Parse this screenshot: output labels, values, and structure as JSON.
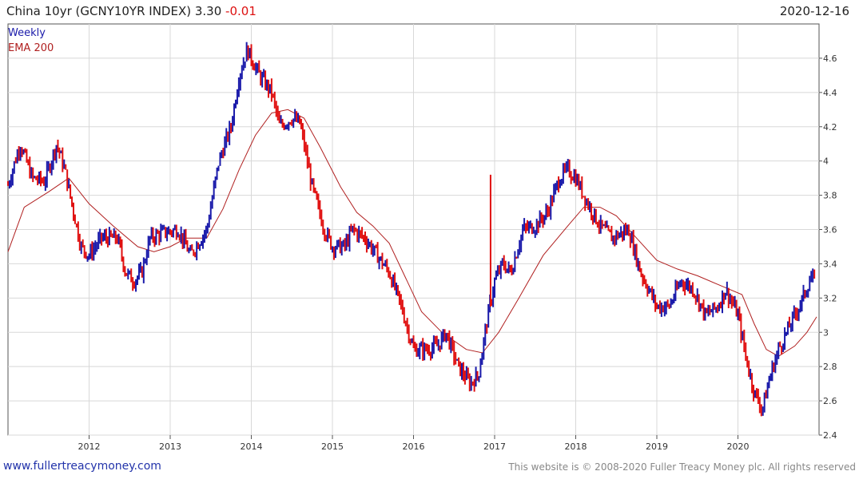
{
  "header": {
    "title_prefix": "China 10yr (GCNY10YR INDEX) 3.30",
    "change": "-0.01",
    "date": "2020-12-16"
  },
  "footer": {
    "site": "www.fullertreacymoney.com",
    "copyright": "This website is © 2008-2020 Fuller Treacy Money plc. All rights reserved"
  },
  "chart_data": {
    "type": "line",
    "legend": [
      "Weekly",
      "EMA 200"
    ],
    "ylim": [
      2.4,
      4.8
    ],
    "xlim": [
      2011.0,
      2021.0
    ],
    "yticks": [
      "2.4",
      "2.6",
      "2.8",
      "3",
      "3.2",
      "3.4",
      "3.6",
      "3.8",
      "4",
      "4.2",
      "4.4",
      "4.6"
    ],
    "xticks": [
      "2012",
      "2013",
      "2014",
      "2015",
      "2016",
      "2017",
      "2018",
      "2019",
      "2020"
    ],
    "colors": {
      "up": "#1a1aaa",
      "down": "#e01010",
      "ema": "#b02020",
      "grid": "#d8d8d8"
    },
    "price": [
      [
        2011.0,
        3.86
      ],
      [
        2011.15,
        4.1
      ],
      [
        2011.3,
        3.9
      ],
      [
        2011.45,
        3.88
      ],
      [
        2011.6,
        4.1
      ],
      [
        2011.7,
        3.95
      ],
      [
        2011.8,
        3.72
      ],
      [
        2011.9,
        3.5
      ],
      [
        2012.0,
        3.45
      ],
      [
        2012.15,
        3.55
      ],
      [
        2012.35,
        3.55
      ],
      [
        2012.45,
        3.35
      ],
      [
        2012.55,
        3.3
      ],
      [
        2012.65,
        3.35
      ],
      [
        2012.75,
        3.55
      ],
      [
        2012.9,
        3.58
      ],
      [
        2013.1,
        3.6
      ],
      [
        2013.25,
        3.45
      ],
      [
        2013.45,
        3.6
      ],
      [
        2013.6,
        4.0
      ],
      [
        2013.75,
        4.2
      ],
      [
        2013.85,
        4.5
      ],
      [
        2013.95,
        4.65
      ],
      [
        2014.1,
        4.5
      ],
      [
        2014.25,
        4.4
      ],
      [
        2014.35,
        4.2
      ],
      [
        2014.5,
        4.25
      ],
      [
        2014.6,
        4.22
      ],
      [
        2014.75,
        3.85
      ],
      [
        2014.9,
        3.6
      ],
      [
        2015.0,
        3.5
      ],
      [
        2015.15,
        3.5
      ],
      [
        2015.25,
        3.6
      ],
      [
        2015.4,
        3.55
      ],
      [
        2015.55,
        3.45
      ],
      [
        2015.7,
        3.35
      ],
      [
        2015.85,
        3.15
      ],
      [
        2016.0,
        2.9
      ],
      [
        2016.15,
        2.9
      ],
      [
        2016.3,
        2.92
      ],
      [
        2016.4,
        3.0
      ],
      [
        2016.55,
        2.8
      ],
      [
        2016.7,
        2.7
      ],
      [
        2016.8,
        2.75
      ],
      [
        2016.9,
        3.05
      ],
      [
        2017.0,
        3.3
      ],
      [
        2017.1,
        3.4
      ],
      [
        2017.2,
        3.35
      ],
      [
        2017.35,
        3.6
      ],
      [
        2017.5,
        3.62
      ],
      [
        2017.65,
        3.7
      ],
      [
        2017.8,
        3.9
      ],
      [
        2017.9,
        3.95
      ],
      [
        2018.0,
        3.9
      ],
      [
        2018.15,
        3.75
      ],
      [
        2018.3,
        3.62
      ],
      [
        2018.45,
        3.55
      ],
      [
        2018.65,
        3.6
      ],
      [
        2018.8,
        3.35
      ],
      [
        2019.0,
        3.15
      ],
      [
        2019.15,
        3.15
      ],
      [
        2019.3,
        3.3
      ],
      [
        2019.45,
        3.25
      ],
      [
        2019.6,
        3.1
      ],
      [
        2019.75,
        3.15
      ],
      [
        2019.85,
        3.25
      ],
      [
        2020.0,
        3.1
      ],
      [
        2020.1,
        2.85
      ],
      [
        2020.2,
        2.65
      ],
      [
        2020.3,
        2.55
      ],
      [
        2020.4,
        2.75
      ],
      [
        2020.5,
        2.9
      ],
      [
        2020.6,
        3.0
      ],
      [
        2020.7,
        3.1
      ],
      [
        2020.8,
        3.2
      ],
      [
        2020.9,
        3.32
      ],
      [
        2020.96,
        3.3
      ]
    ],
    "spike": {
      "x": 2016.95,
      "low": 3.15,
      "high": 3.92
    },
    "ema": [
      [
        2011.0,
        3.47
      ],
      [
        2011.2,
        3.73
      ],
      [
        2011.5,
        3.82
      ],
      [
        2011.75,
        3.9
      ],
      [
        2012.0,
        3.75
      ],
      [
        2012.3,
        3.62
      ],
      [
        2012.6,
        3.5
      ],
      [
        2012.8,
        3.47
      ],
      [
        2013.0,
        3.5
      ],
      [
        2013.2,
        3.55
      ],
      [
        2013.45,
        3.55
      ],
      [
        2013.65,
        3.72
      ],
      [
        2013.85,
        3.95
      ],
      [
        2014.05,
        4.15
      ],
      [
        2014.25,
        4.28
      ],
      [
        2014.45,
        4.3
      ],
      [
        2014.65,
        4.25
      ],
      [
        2014.85,
        4.08
      ],
      [
        2015.1,
        3.85
      ],
      [
        2015.3,
        3.7
      ],
      [
        2015.5,
        3.62
      ],
      [
        2015.7,
        3.52
      ],
      [
        2015.9,
        3.32
      ],
      [
        2016.1,
        3.12
      ],
      [
        2016.35,
        3.0
      ],
      [
        2016.65,
        2.9
      ],
      [
        2016.85,
        2.88
      ],
      [
        2017.05,
        3.0
      ],
      [
        2017.3,
        3.2
      ],
      [
        2017.6,
        3.45
      ],
      [
        2017.9,
        3.62
      ],
      [
        2018.1,
        3.73
      ],
      [
        2018.3,
        3.73
      ],
      [
        2018.5,
        3.68
      ],
      [
        2018.75,
        3.55
      ],
      [
        2019.0,
        3.42
      ],
      [
        2019.25,
        3.37
      ],
      [
        2019.5,
        3.33
      ],
      [
        2019.8,
        3.27
      ],
      [
        2020.05,
        3.22
      ],
      [
        2020.2,
        3.05
      ],
      [
        2020.35,
        2.9
      ],
      [
        2020.5,
        2.86
      ],
      [
        2020.7,
        2.92
      ],
      [
        2020.85,
        3.0
      ],
      [
        2020.97,
        3.09
      ]
    ]
  }
}
